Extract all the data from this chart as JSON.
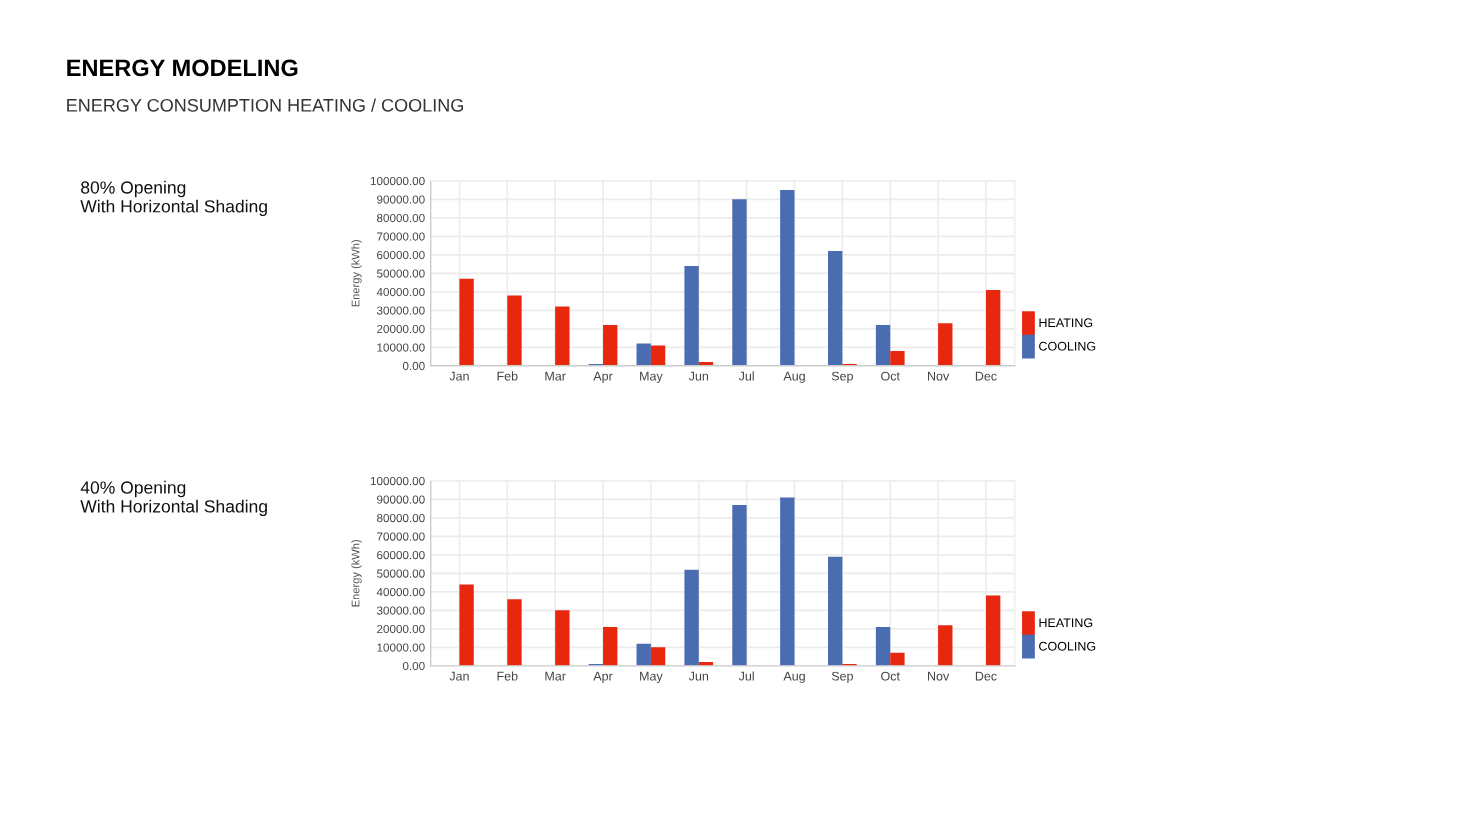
{
  "chart_data": [
    {
      "type": "bar",
      "title": "80% Opening\nWith Horizontal Shading",
      "ylabel": "Energy (kWh)",
      "annotations": [
        "ENERGY MODELING",
        "ENERGY CONSUMPTION HEATING / COOLING"
      ],
      "categories": [
        "Jan",
        "Feb",
        "Mar",
        "Apr",
        "May",
        "Jun",
        "Jul",
        "Aug",
        "Sep",
        "Oct",
        "Nov",
        "Dec"
      ],
      "series": [
        {
          "name": "COOLING",
          "color": "#4a6cb0",
          "values": [
            0,
            0,
            0,
            1000,
            12000,
            54000,
            90000,
            95000,
            62000,
            22000,
            0,
            0
          ]
        },
        {
          "name": "HEATING",
          "color": "#e8270f",
          "values": [
            47000,
            38000,
            32000,
            22000,
            11000,
            2000,
            0,
            0,
            1000,
            8000,
            23000,
            41000
          ]
        }
      ],
      "ylim": [
        0,
        100000
      ],
      "yticks": [
        {
          "value": 0,
          "label": "0.00"
        },
        {
          "value": 10000,
          "label": "10000.00"
        },
        {
          "value": 20000,
          "label": "20000.00"
        },
        {
          "value": 30000,
          "label": "30000.00"
        },
        {
          "value": 40000,
          "label": "40000.00"
        },
        {
          "value": 50000,
          "label": "50000.00"
        },
        {
          "value": 60000,
          "label": "60000.00"
        },
        {
          "value": 70000,
          "label": "70000.00"
        },
        {
          "value": 80000,
          "label": "80000.00"
        },
        {
          "value": 90000,
          "label": "90000.00"
        },
        {
          "value": 100000,
          "label": "100000.00"
        }
      ],
      "grid": true,
      "legend": "right"
    },
    {
      "type": "bar",
      "title": "40% Opening\nWith Horizontal Shading",
      "ylabel": "Energy (kWh)",
      "categories": [
        "Jan",
        "Feb",
        "Mar",
        "Apr",
        "May",
        "Jun",
        "Jul",
        "Aug",
        "Sep",
        "Oct",
        "Nov",
        "Dec"
      ],
      "series": [
        {
          "name": "COOLING",
          "color": "#4a6cb0",
          "values": [
            0,
            0,
            0,
            1000,
            12000,
            52000,
            87000,
            91000,
            59000,
            21000,
            0,
            0
          ]
        },
        {
          "name": "HEATING",
          "color": "#e8270f",
          "values": [
            44000,
            36000,
            30000,
            21000,
            10000,
            2000,
            0,
            0,
            1000,
            7000,
            22000,
            38000
          ]
        }
      ],
      "ylim": [
        0,
        100000
      ],
      "yticks": [
        {
          "value": 0,
          "label": "0.00"
        },
        {
          "value": 10000,
          "label": "10000.00"
        },
        {
          "value": 20000,
          "label": "20000.00"
        },
        {
          "value": 30000,
          "label": "30000.00"
        },
        {
          "value": 40000,
          "label": "40000.00"
        },
        {
          "value": 50000,
          "label": "50000.00"
        },
        {
          "value": 60000,
          "label": "60000.00"
        },
        {
          "value": 70000,
          "label": "70000.00"
        },
        {
          "value": 80000,
          "label": "80000.00"
        },
        {
          "value": 90000,
          "label": "90000.00"
        },
        {
          "value": 100000,
          "label": "100000.00"
        }
      ],
      "grid": true,
      "legend": "right"
    }
  ]
}
